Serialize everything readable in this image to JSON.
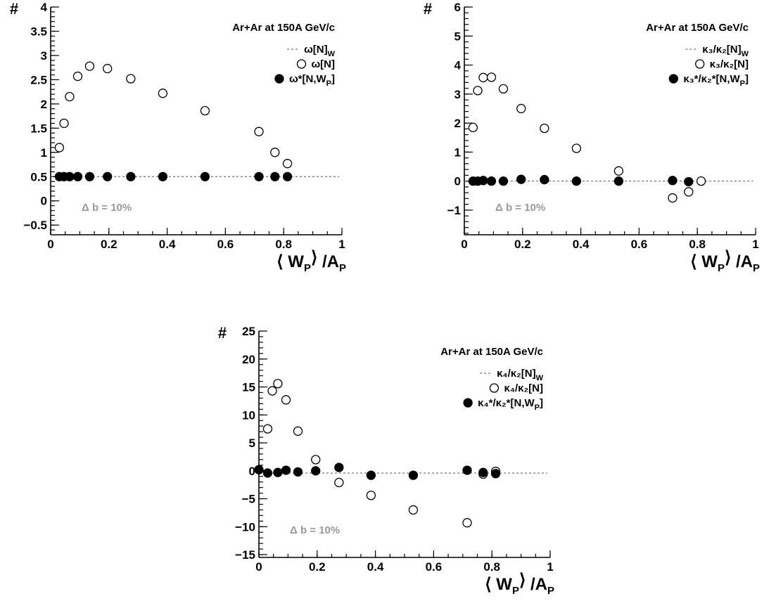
{
  "chart_data": [
    {
      "type": "scatter",
      "title": "Ar+Ar at 150A GeV/c",
      "ylabel": "#",
      "xlabel": {
        "open": "⟨",
        "main": "W",
        "sub": "P",
        "close": "⟩",
        "slash": "/A",
        "sub2": "P"
      },
      "annotation": "Δ b = 10%",
      "xlim": [
        0,
        1.0
      ],
      "ylim": [
        -0.7,
        4.0
      ],
      "xticks": [
        0,
        0.2,
        0.4,
        0.6,
        0.8,
        1
      ],
      "xtick_labels": [
        "0",
        "0.2",
        "0.4",
        "0.6",
        "0.8",
        "1"
      ],
      "yticks": [
        -0.5,
        0,
        0.5,
        1,
        1.5,
        2,
        2.5,
        3,
        3.5,
        4
      ],
      "ytick_labels": [
        "−0.5",
        "0",
        "0.5",
        "1",
        "1.5",
        "2",
        "2.5",
        "3",
        "3.5",
        "4"
      ],
      "grid": false,
      "legend_position": "top-right",
      "series": [
        {
          "name": "ω[N]_W",
          "label_main": "ω[N]",
          "label_sub": "W",
          "style": "dashed-line",
          "y_const": 0.5
        },
        {
          "name": "ω[N]",
          "label_main": "ω[N]",
          "label_sub": "",
          "style": "open-circle",
          "x": [
            0.03,
            0.046,
            0.065,
            0.093,
            0.134,
            0.195,
            0.275,
            0.385,
            0.53,
            0.715,
            0.77,
            0.813
          ],
          "y": [
            1.1,
            1.6,
            2.15,
            2.57,
            2.78,
            2.73,
            2.52,
            2.22,
            1.86,
            1.43,
            1.0,
            0.77
          ]
        },
        {
          "name": "ω*[N,W_P]",
          "label_main": "ω*[N,W",
          "label_sub": "P",
          "label_tail": "]",
          "style": "filled-circle",
          "x": [
            0.03,
            0.046,
            0.065,
            0.093,
            0.134,
            0.195,
            0.275,
            0.385,
            0.53,
            0.715,
            0.77,
            0.813
          ],
          "y": [
            0.5,
            0.5,
            0.5,
            0.5,
            0.5,
            0.5,
            0.5,
            0.5,
            0.5,
            0.5,
            0.5,
            0.5
          ]
        }
      ]
    },
    {
      "type": "scatter",
      "title": "Ar+Ar at 150A GeV/c",
      "ylabel": "#",
      "xlabel": {
        "open": "⟨",
        "main": "W",
        "sub": "P",
        "close": "⟩",
        "slash": "/A",
        "sub2": "P"
      },
      "annotation": "Δ b = 10%",
      "xlim": [
        0,
        1.0
      ],
      "ylim": [
        -1.85,
        6.0
      ],
      "xticks": [
        0,
        0.2,
        0.4,
        0.6,
        0.8,
        1
      ],
      "xtick_labels": [
        "0",
        "0.2",
        "0.4",
        "0.6",
        "0.8",
        "1"
      ],
      "yticks": [
        -1,
        0,
        1,
        2,
        3,
        4,
        5,
        6
      ],
      "ytick_labels": [
        "−1",
        "0",
        "1",
        "2",
        "3",
        "4",
        "5",
        "6"
      ],
      "grid": false,
      "legend_position": "top-right",
      "series": [
        {
          "name": "κ3/κ2[N]_W",
          "label_main": "κ₃/κ₂[N]",
          "label_sub": "W",
          "style": "dashed-line",
          "y_const": 0.0
        },
        {
          "name": "κ3/κ2[N]",
          "label_main": "κ₃/κ₂[N]",
          "label_sub": "",
          "style": "open-circle",
          "x": [
            0.03,
            0.046,
            0.065,
            0.093,
            0.134,
            0.195,
            0.275,
            0.385,
            0.53,
            0.715,
            0.77,
            0.813
          ],
          "y": [
            1.85,
            3.12,
            3.57,
            3.58,
            3.18,
            2.5,
            1.82,
            1.13,
            0.35,
            -0.58,
            -0.37,
            0.0
          ]
        },
        {
          "name": "κ3*/κ2*[N,W_P]",
          "label_main": "κ₃*/κ₂*[N,W",
          "label_sub": "P",
          "label_tail": "]",
          "style": "filled-circle",
          "x": [
            0.03,
            0.046,
            0.065,
            0.093,
            0.134,
            0.195,
            0.275,
            0.385,
            0.53,
            0.715,
            0.77
          ],
          "y": [
            0.0,
            0.0,
            0.02,
            0.0,
            0.0,
            0.06,
            0.05,
            0.0,
            0.0,
            0.02,
            -0.02
          ]
        }
      ]
    },
    {
      "type": "scatter",
      "title": "Ar+Ar at 150A GeV/c",
      "ylabel": "#",
      "xlabel": {
        "open": "⟨",
        "main": "W",
        "sub": "P",
        "close": "⟩",
        "slash": "/A",
        "sub2": "P"
      },
      "annotation": "Δ b = 10%",
      "xlim": [
        0,
        1.0
      ],
      "ylim": [
        -15.5,
        25.0
      ],
      "xticks": [
        0,
        0.2,
        0.4,
        0.6,
        0.8,
        1
      ],
      "xtick_labels": [
        "0",
        "0.2",
        "0.4",
        "0.6",
        "0.8",
        "1"
      ],
      "yticks": [
        -15,
        -10,
        -5,
        0,
        5,
        10,
        15,
        20,
        25
      ],
      "ytick_labels": [
        "−15",
        "−10",
        "−5",
        "0",
        "5",
        "10",
        "15",
        "20",
        "25"
      ],
      "grid": false,
      "legend_position": "top-right",
      "series": [
        {
          "name": "κ4/κ2[N]_W",
          "label_main": "κ₄/κ₂[N]",
          "label_sub": "W",
          "style": "dashed-line",
          "y_const": -0.4
        },
        {
          "name": "κ4/κ2[N]",
          "label_main": "κ₄/κ₂[N]",
          "label_sub": "",
          "style": "open-circle",
          "x": [
            0.03,
            0.046,
            0.065,
            0.093,
            0.134,
            0.195,
            0.275,
            0.385,
            0.53,
            0.715,
            0.77,
            0.813
          ],
          "y": [
            7.5,
            14.3,
            15.6,
            12.7,
            7.1,
            2.0,
            -2.1,
            -4.4,
            -7.0,
            -9.3,
            -0.6,
            -0.1
          ]
        },
        {
          "name": "κ4*/κ2*[N,W_P]",
          "label_main": "κ₄*/κ₂*[N,W",
          "label_sub": "P",
          "label_tail": "]",
          "style": "filled-circle",
          "x": [
            0.0,
            0.03,
            0.065,
            0.093,
            0.134,
            0.195,
            0.275,
            0.385,
            0.53,
            0.715,
            0.77,
            0.813
          ],
          "y": [
            0.2,
            -0.4,
            -0.3,
            0.1,
            -0.2,
            0.0,
            0.6,
            -0.8,
            -0.8,
            0.1,
            -0.3,
            -0.5
          ]
        }
      ]
    }
  ]
}
